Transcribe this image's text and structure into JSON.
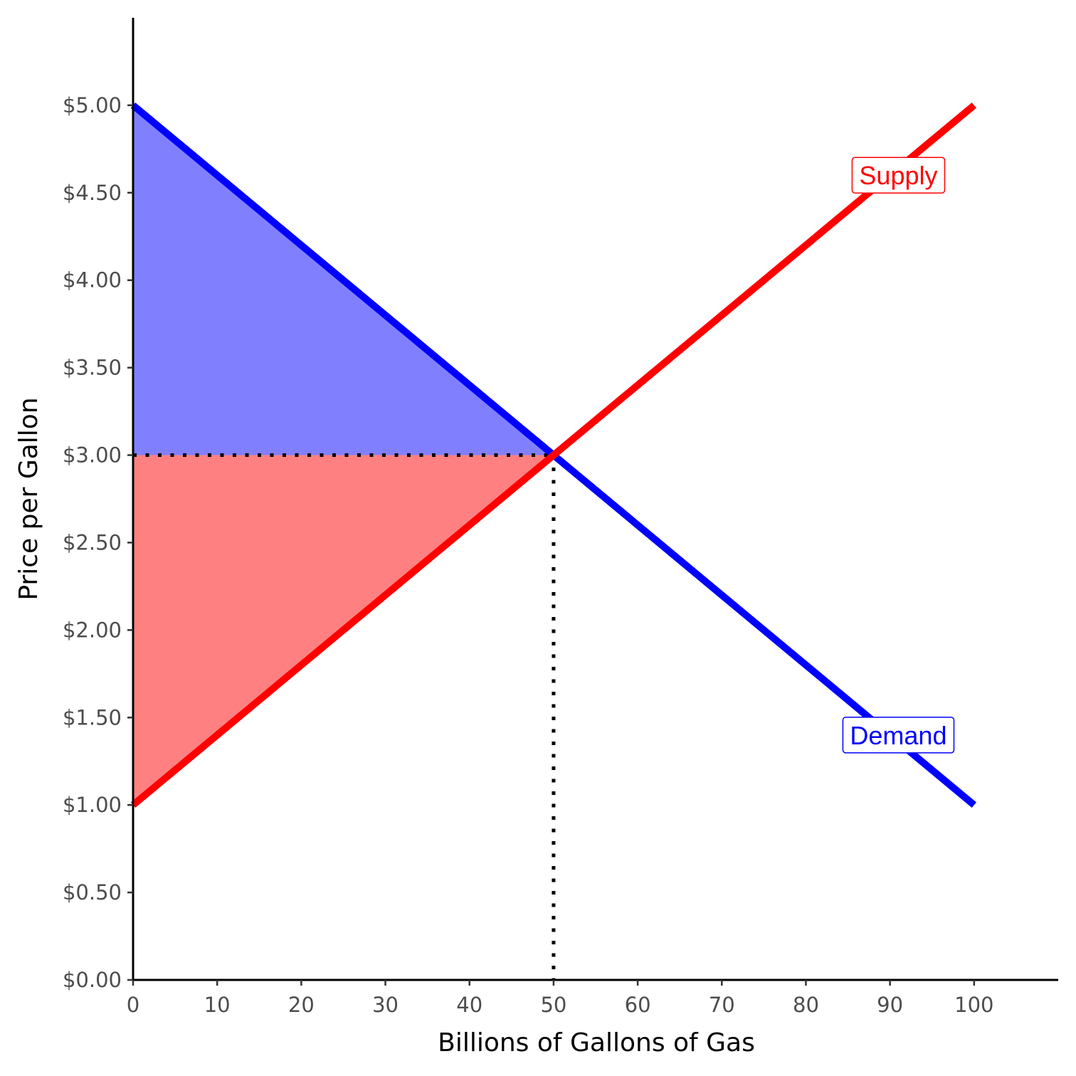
{
  "chart_data": {
    "type": "line",
    "xlabel": "Billions of Gallons of Gas",
    "ylabel": "Price per Gallon",
    "xlim": [
      0,
      110
    ],
    "ylim": [
      0,
      5.5
    ],
    "x_ticks": [
      {
        "value": 0,
        "label": "0"
      },
      {
        "value": 10,
        "label": "10"
      },
      {
        "value": 20,
        "label": "20"
      },
      {
        "value": 30,
        "label": "30"
      },
      {
        "value": 40,
        "label": "40"
      },
      {
        "value": 50,
        "label": "50"
      },
      {
        "value": 60,
        "label": "60"
      },
      {
        "value": 70,
        "label": "70"
      },
      {
        "value": 80,
        "label": "80"
      },
      {
        "value": 90,
        "label": "90"
      },
      {
        "value": 100,
        "label": "100"
      }
    ],
    "y_ticks": [
      {
        "value": 0,
        "label": "$0.00"
      },
      {
        "value": 0.5,
        "label": "$0.50"
      },
      {
        "value": 1,
        "label": "$1.00"
      },
      {
        "value": 1.5,
        "label": "$1.50"
      },
      {
        "value": 2,
        "label": "$2.00"
      },
      {
        "value": 2.5,
        "label": "$2.50"
      },
      {
        "value": 3,
        "label": "$3.00"
      },
      {
        "value": 3.5,
        "label": "$3.50"
      },
      {
        "value": 4,
        "label": "$4.00"
      },
      {
        "value": 4.5,
        "label": "$4.50"
      },
      {
        "value": 5,
        "label": "$5.00"
      }
    ],
    "series": [
      {
        "name": "Supply",
        "color": "#ff0000",
        "x": [
          0,
          100
        ],
        "y": [
          1,
          5
        ],
        "label_at": [
          91,
          4.6
        ]
      },
      {
        "name": "Demand",
        "color": "#0000ff",
        "x": [
          0,
          100
        ],
        "y": [
          5,
          1
        ],
        "label_at": [
          91,
          1.4
        ]
      }
    ],
    "equilibrium": {
      "quantity": 50,
      "price": 3
    },
    "shaded_areas": [
      {
        "region": "consumer surplus",
        "color": "#8080ff",
        "x": [
          0,
          0,
          50
        ],
        "y": [
          5,
          3,
          3
        ]
      },
      {
        "region": "producer surplus",
        "color": "#ff8080",
        "x": [
          0,
          0,
          50
        ],
        "y": [
          3,
          1,
          3
        ]
      }
    ],
    "grid": false,
    "legend": "none"
  }
}
